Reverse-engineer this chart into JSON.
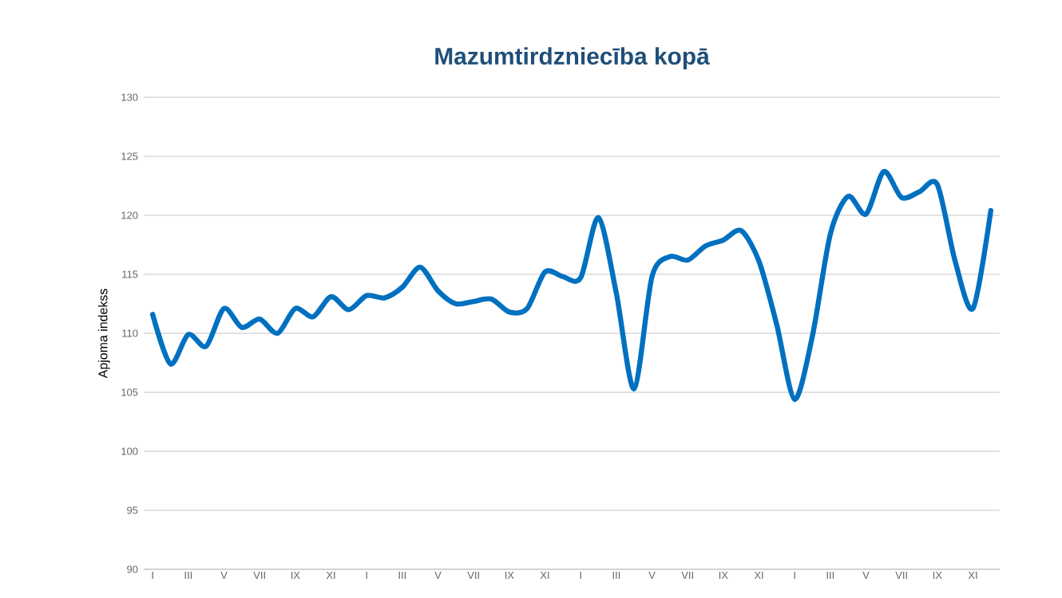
{
  "chart_data": {
    "type": "line",
    "title": "Mazumtirdzniecība kopā",
    "ylabel": "Apjoma indekss",
    "categories": [
      "I",
      null,
      "III",
      null,
      "V",
      null,
      "VII",
      null,
      "IX",
      null,
      "XI",
      null,
      "I",
      null,
      "III",
      null,
      "V",
      null,
      "VII",
      null,
      "IX",
      null,
      "XI",
      null,
      "I",
      null,
      "III",
      null,
      "V",
      null,
      "VII",
      null,
      "IX",
      null,
      "XI",
      null,
      "I",
      null,
      "III",
      null,
      "V",
      null,
      "VII",
      null,
      "IX",
      null,
      "XI",
      null
    ],
    "series": [
      {
        "color": "#0070c0",
        "values": [
          111.6,
          107.4,
          109.9,
          108.9,
          112.1,
          110.5,
          111.2,
          110.0,
          112.1,
          111.4,
          113.1,
          112.0,
          113.2,
          113.0,
          113.9,
          115.6,
          113.6,
          112.5,
          112.7,
          112.9,
          111.8,
          112.1,
          115.2,
          114.8,
          114.7,
          119.8,
          113.4,
          105.3,
          114.8,
          116.5,
          116.2,
          117.4,
          117.9,
          118.7,
          116.1,
          110.7,
          104.4,
          109.8,
          118.4,
          121.6,
          120.1,
          123.7,
          121.5,
          122.0,
          122.6,
          116.1,
          112.1,
          120.4
        ]
      }
    ],
    "ylim": [
      90,
      130
    ],
    "yticks": [
      90,
      95,
      100,
      105,
      110,
      115,
      120,
      125,
      130
    ],
    "grid": "y",
    "marker": "none",
    "line_style": "solid"
  }
}
